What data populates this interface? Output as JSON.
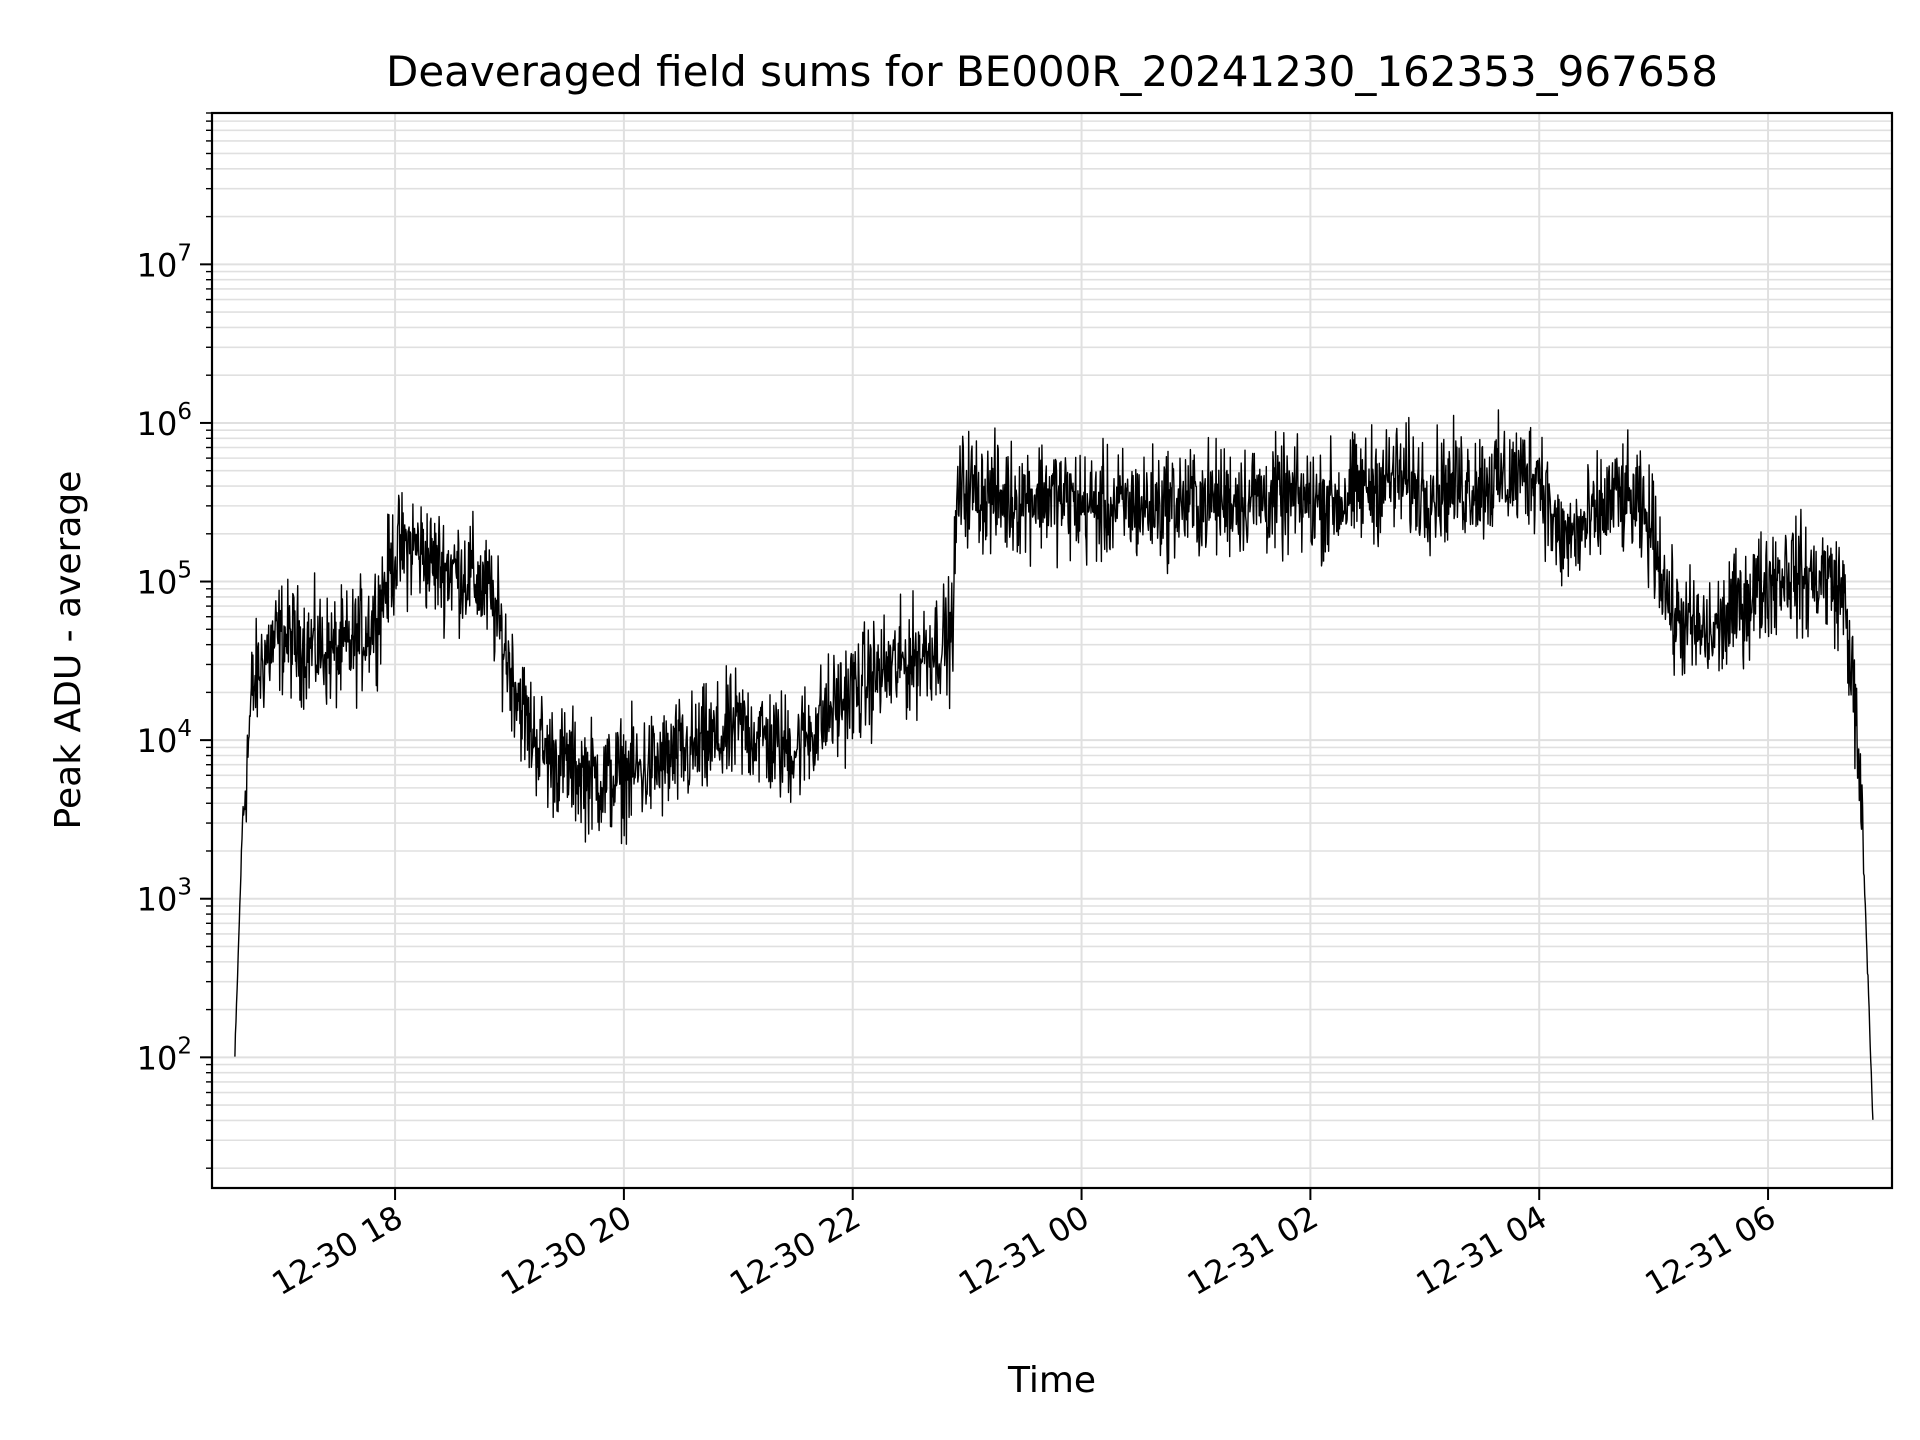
{
  "chart_data": {
    "type": "line",
    "title": "Deaveraged field sums for BE000R_20241230_162353_967658",
    "xlabel": "Time",
    "ylabel": "Peak ADU - average",
    "yscale": "log",
    "ylim": [
      15,
      90000000
    ],
    "xlim": [
      "2024-12-30 16:24",
      "2024-12-31 07:05"
    ],
    "grid": true,
    "line_color": "#000000",
    "grid_color": "#e0e0e0",
    "x_ticks": [
      {
        "value": "2024-12-30 18:00",
        "label": "12-30 18"
      },
      {
        "value": "2024-12-30 20:00",
        "label": "12-30 20"
      },
      {
        "value": "2024-12-30 22:00",
        "label": "12-30 22"
      },
      {
        "value": "2024-12-31 00:00",
        "label": "12-31 00"
      },
      {
        "value": "2024-12-31 02:00",
        "label": "12-31 02"
      },
      {
        "value": "2024-12-31 04:00",
        "label": "12-31 04"
      },
      {
        "value": "2024-12-31 06:00",
        "label": "12-31 06"
      }
    ],
    "y_ticks": [
      {
        "value": 100,
        "base": "10",
        "exp": "2"
      },
      {
        "value": 1000,
        "base": "10",
        "exp": "3"
      },
      {
        "value": 10000,
        "base": "10",
        "exp": "4"
      },
      {
        "value": 100000,
        "base": "10",
        "exp": "5"
      },
      {
        "value": 1000000,
        "base": "10",
        "exp": "6"
      },
      {
        "value": 10000000,
        "base": "10",
        "exp": "7"
      }
    ],
    "series": [
      {
        "x": [
          "2024-12-30 16:36",
          "2024-12-30 16:40",
          "2024-12-30 16:45",
          "2024-12-30 16:52",
          "2024-12-30 17:00",
          "2024-12-30 17:10",
          "2024-12-30 17:20",
          "2024-12-30 17:30",
          "2024-12-30 17:40",
          "2024-12-30 17:50",
          "2024-12-30 18:00",
          "2024-12-30 18:10",
          "2024-12-30 18:20",
          "2024-12-30 18:30",
          "2024-12-30 18:40",
          "2024-12-30 18:50",
          "2024-12-30 19:00",
          "2024-12-30 19:10",
          "2024-12-30 19:20",
          "2024-12-30 19:30",
          "2024-12-30 19:40",
          "2024-12-30 19:50",
          "2024-12-30 20:00",
          "2024-12-30 20:10",
          "2024-12-30 20:20",
          "2024-12-30 20:30",
          "2024-12-30 20:40",
          "2024-12-30 20:50",
          "2024-12-30 21:00",
          "2024-12-30 21:10",
          "2024-12-30 21:20",
          "2024-12-30 21:30",
          "2024-12-30 21:40",
          "2024-12-30 21:50",
          "2024-12-30 22:00",
          "2024-12-30 22:10",
          "2024-12-30 22:20",
          "2024-12-30 22:30",
          "2024-12-30 22:40",
          "2024-12-30 22:52",
          "2024-12-30 22:55",
          "2024-12-30 23:00",
          "2024-12-30 23:10",
          "2024-12-30 23:20",
          "2024-12-30 23:30",
          "2024-12-30 23:40",
          "2024-12-30 23:50",
          "2024-12-31 00:00",
          "2024-12-31 00:15",
          "2024-12-31 00:30",
          "2024-12-31 00:45",
          "2024-12-31 01:00",
          "2024-12-31 01:15",
          "2024-12-31 01:30",
          "2024-12-31 01:45",
          "2024-12-31 02:00",
          "2024-12-31 02:15",
          "2024-12-31 02:30",
          "2024-12-31 02:45",
          "2024-12-31 03:00",
          "2024-12-31 03:15",
          "2024-12-31 03:30",
          "2024-12-31 03:45",
          "2024-12-31 04:00",
          "2024-12-31 04:10",
          "2024-12-31 04:20",
          "2024-12-31 04:30",
          "2024-12-31 04:40",
          "2024-12-31 04:50",
          "2024-12-31 05:00",
          "2024-12-31 05:10",
          "2024-12-31 05:20",
          "2024-12-31 05:30",
          "2024-12-31 05:40",
          "2024-12-31 05:50",
          "2024-12-31 06:00",
          "2024-12-31 06:10",
          "2024-12-31 06:20",
          "2024-12-31 06:30",
          "2024-12-31 06:40",
          "2024-12-31 06:45",
          "2024-12-31 06:50",
          "2024-12-31 06:55"
        ],
        "y": [
          100,
          3000,
          20000,
          35000,
          45000,
          40000,
          38000,
          35000,
          42000,
          60000,
          150000,
          170000,
          130000,
          120000,
          110000,
          80000,
          30000,
          12000,
          8000,
          7000,
          6000,
          5500,
          6000,
          6500,
          7000,
          8000,
          9000,
          10000,
          12000,
          11000,
          9000,
          9000,
          12000,
          16000,
          20000,
          25000,
          28000,
          32000,
          38000,
          45000,
          350000,
          400000,
          350000,
          330000,
          340000,
          360000,
          330000,
          300000,
          290000,
          300000,
          310000,
          320000,
          330000,
          340000,
          330000,
          320000,
          320000,
          400000,
          450000,
          380000,
          400000,
          420000,
          450000,
          500000,
          180000,
          200000,
          250000,
          350000,
          300000,
          200000,
          60000,
          50000,
          45000,
          60000,
          80000,
          100000,
          120000,
          100000,
          110000,
          80000,
          20000,
          2000,
          40
        ]
      }
    ]
  }
}
